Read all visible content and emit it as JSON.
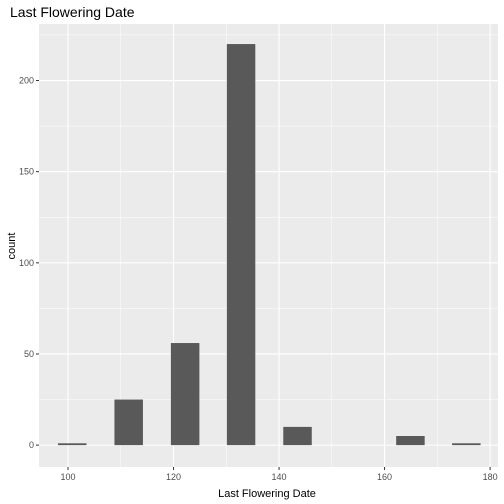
{
  "chart_data": {
    "type": "bar",
    "title": "Last Flowering Date",
    "xlabel": "Last Flowering Date",
    "ylabel": "count",
    "xlim": [
      94.5,
      181.5
    ],
    "ylim": [
      -12,
      231
    ],
    "x_ticks": [
      100,
      120,
      140,
      160,
      180
    ],
    "x_tick_labels": [
      "100",
      "120",
      "140",
      "160",
      "180"
    ],
    "y_ticks": [
      0,
      50,
      100,
      150,
      200
    ],
    "y_tick_labels": [
      "0",
      "50",
      "100",
      "150",
      "200"
    ],
    "bin_width": 5.4,
    "bins": [
      {
        "x": 100.8,
        "count": 1
      },
      {
        "x": 111.5,
        "count": 25
      },
      {
        "x": 122.2,
        "count": 56
      },
      {
        "x": 132.8,
        "count": 220
      },
      {
        "x": 143.5,
        "count": 10
      },
      {
        "x": 154.2,
        "count": 0
      },
      {
        "x": 164.9,
        "count": 5
      },
      {
        "x": 175.5,
        "count": 1
      }
    ],
    "grid": true,
    "colors": {
      "panel": "#ebebeb",
      "grid_major": "#ffffff",
      "bar": "#595959",
      "tick": "#4d4d4d"
    }
  }
}
